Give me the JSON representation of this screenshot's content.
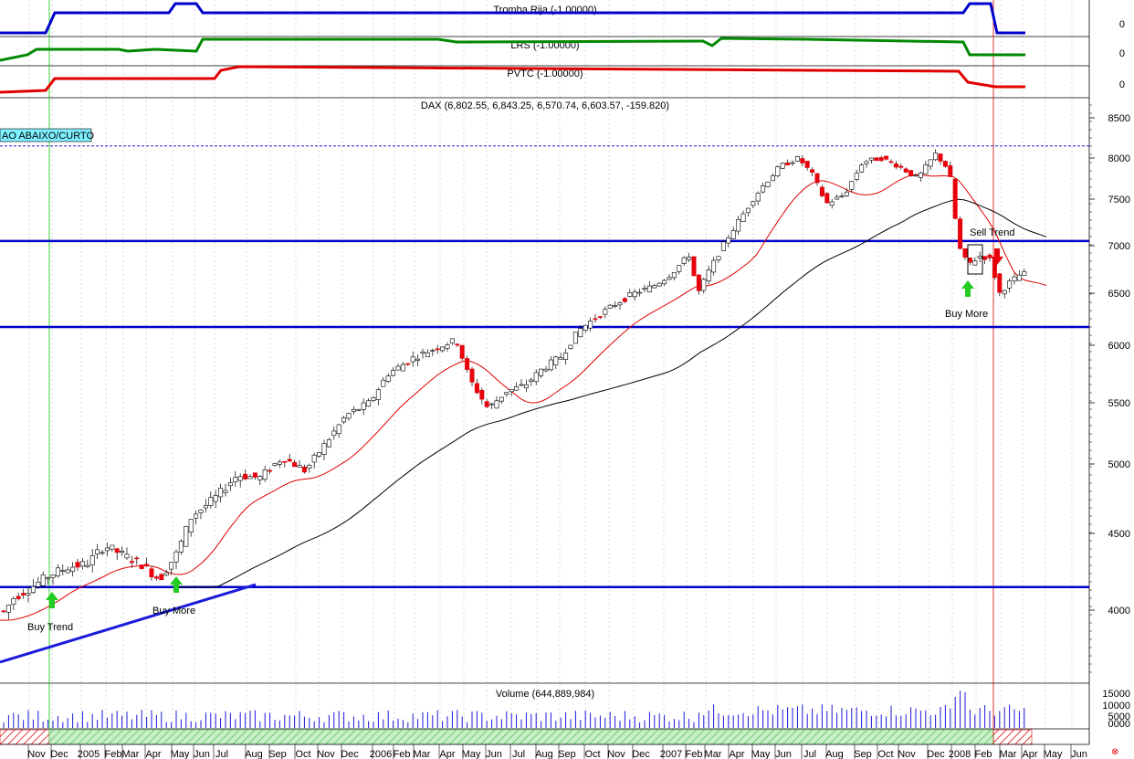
{
  "colors": {
    "up_fill": "#ffffff",
    "up_stroke": "#000000",
    "down": "#e8000b",
    "sma_short": "#e00000",
    "sma_long": "#000000",
    "hline": "#0000cc",
    "trendline": "#1a1adc",
    "volume": "#1a1adc",
    "grid": "#c0c0c0",
    "buy_arrow": "#22cc22",
    "sell_arrow": "#e8000b"
  },
  "indicators": [
    {
      "label": "Tromba Rija (-1.00000)",
      "color": "#0000cc",
      "value_label": "0"
    },
    {
      "label": "LRS (-1.00000)",
      "color": "#008800",
      "value_label": "0"
    },
    {
      "label": "PVTC (-1.00000)",
      "color": "#e00000",
      "value_label": "0"
    }
  ],
  "chart_data": {
    "type": "candlestick",
    "title": "DAX (6,802.55, 6,843.25, 6,570.74, 6,603.57, -159.820)",
    "ohlc_last": {
      "open": 6802.55,
      "high": 6843.25,
      "low": 6570.74,
      "close": 6603.57,
      "change": -159.82
    },
    "price_ticks": [
      8500,
      8000,
      7500,
      7000,
      6500,
      6000,
      5500,
      5000,
      4500,
      4000
    ],
    "ylim": [
      3650,
      8600
    ],
    "x_labels": [
      "Nov",
      "Dec",
      "2005",
      "Feb",
      "Mar",
      "Apr",
      "May",
      "Jun",
      "Jul",
      "Aug",
      "Sep",
      "Oct",
      "Nov",
      "Dec",
      "2006",
      "Feb",
      "Mar",
      "Apr",
      "May",
      "Jun",
      "Jul",
      "Aug",
      "Sep",
      "Oct",
      "Nov",
      "Dec",
      "2007",
      "Feb",
      "Mar",
      "Apr",
      "May",
      "Jun",
      "Jul",
      "Aug",
      "Sep",
      "Oct",
      "Nov",
      "Dec",
      "2008",
      "Feb",
      "Mar",
      "Apr",
      "May",
      "Jun"
    ],
    "horizontal_levels": [
      7050,
      6175,
      4150
    ],
    "dotted_level": 8150,
    "annotations": [
      {
        "text": "AO ABAIXO/CURTO",
        "type": "signal-box"
      },
      {
        "text": "Buy Trend",
        "type": "buy"
      },
      {
        "text": "Buy More",
        "type": "buy"
      },
      {
        "text": "Buy More",
        "type": "buy"
      },
      {
        "text": "Sell Trend",
        "type": "sell"
      }
    ],
    "volume": {
      "label": "Volume (644,889,984)",
      "ticks": [
        "15000",
        "10000",
        "5000",
        "0000"
      ]
    },
    "series": [
      {
        "name": "SMA short",
        "values": "approx"
      },
      {
        "name": "SMA long",
        "values": "approx"
      }
    ]
  }
}
